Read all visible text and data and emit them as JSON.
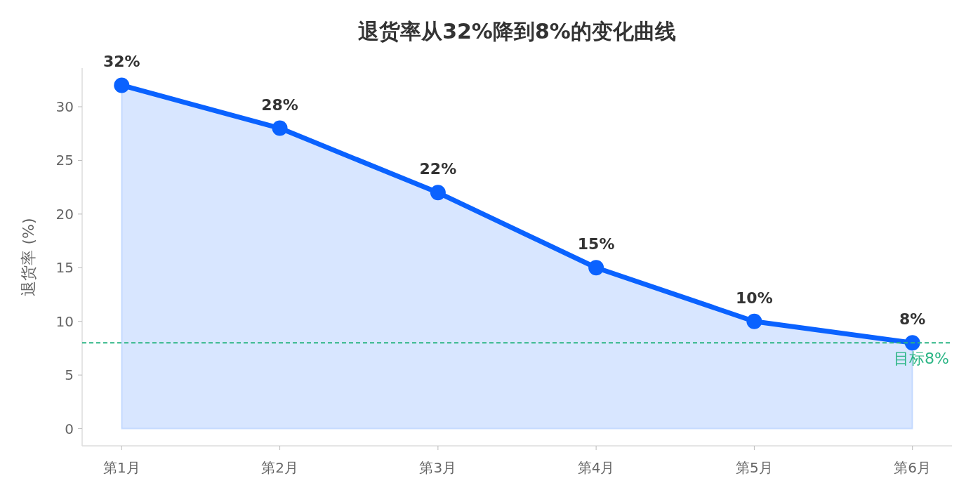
{
  "chart_data": {
    "type": "area",
    "title": "退货率从32%降到8%的变化曲线",
    "ylabel": "退货率 (%)",
    "categories": [
      "第1月",
      "第2月",
      "第3月",
      "第4月",
      "第5月",
      "第6月"
    ],
    "series": [
      {
        "color": "#0a62ff",
        "values": [
          32,
          28,
          22,
          15,
          10,
          8
        ],
        "value_labels": [
          "32%",
          "28%",
          "22%",
          "15%",
          "10%",
          "8%"
        ]
      }
    ],
    "ylim": [
      -1.6,
      33.6
    ],
    "yticks": [
      0,
      5,
      10,
      15,
      20,
      25,
      30
    ],
    "ref_lines": [
      {
        "axis": "y",
        "value": 8,
        "label": "目标8%",
        "color": "#2bb585",
        "line_style": "dashed"
      }
    ],
    "marker": "circle",
    "line_style": "solid",
    "grid": false
  }
}
